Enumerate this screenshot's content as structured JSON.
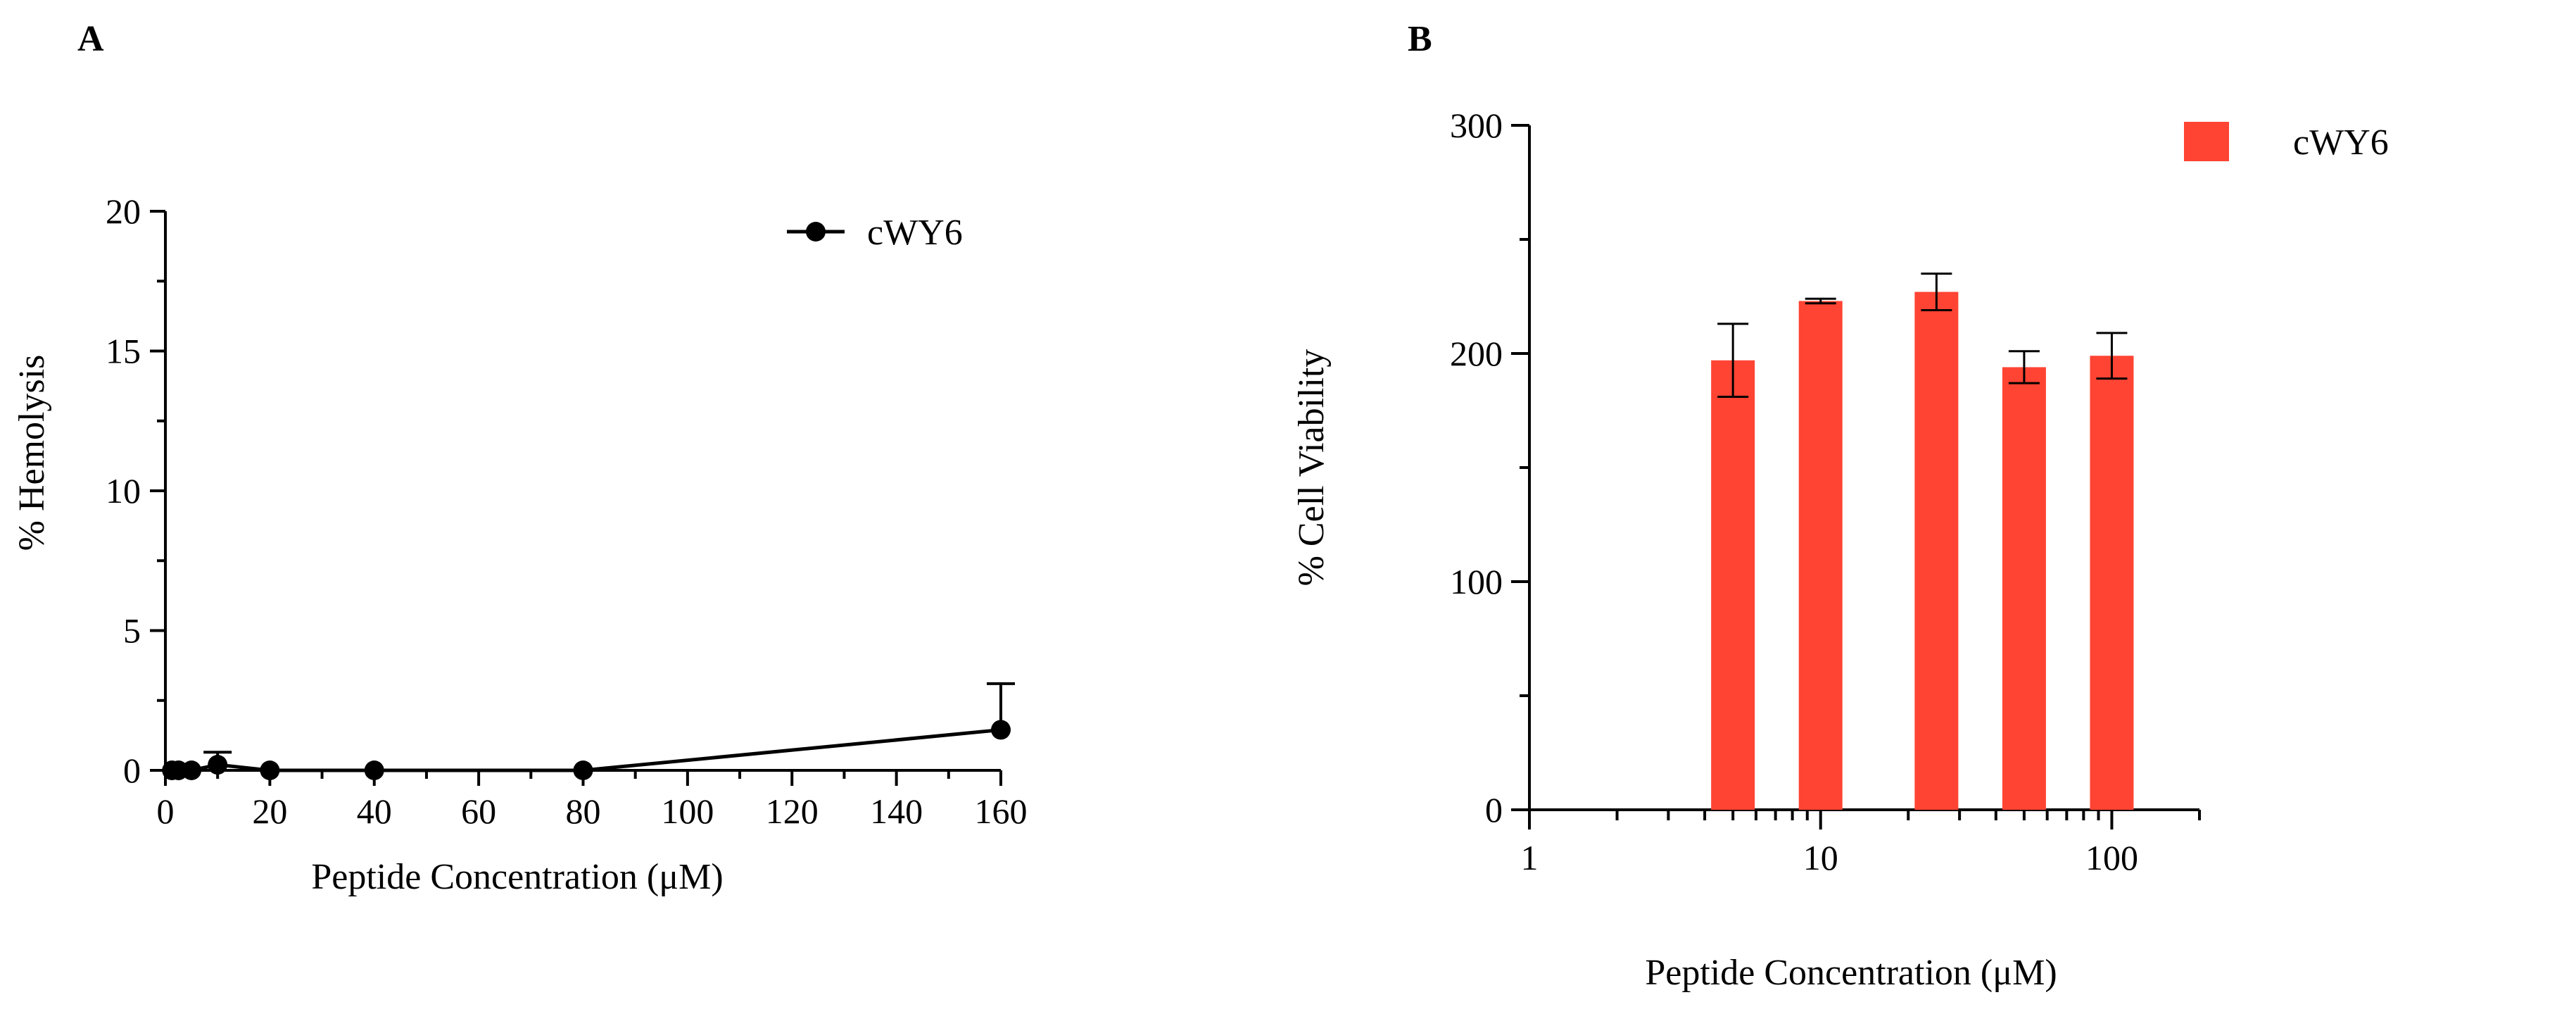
{
  "chart_data": [
    {
      "panel": "A",
      "type": "line",
      "title": "",
      "xlabel": "Peptide Concentration (μM)",
      "ylabel": "% Hemolysis",
      "xlim": [
        0,
        160
      ],
      "ylim": [
        0,
        20
      ],
      "xticks": [
        0,
        20,
        40,
        60,
        80,
        100,
        120,
        140,
        160
      ],
      "yticks": [
        0,
        5,
        10,
        15,
        20
      ],
      "legend": "top-right",
      "series": [
        {
          "name": "cWY6",
          "color": "#000000",
          "marker": "circle",
          "x": [
            1.25,
            2.5,
            5,
            10,
            20,
            40,
            80,
            160
          ],
          "y": [
            0.0,
            0.0,
            0.0,
            0.2,
            0.0,
            0.0,
            0.0,
            1.45
          ],
          "error": [
            0,
            0,
            0,
            0.45,
            0,
            0,
            0,
            1.65
          ]
        }
      ]
    },
    {
      "panel": "B",
      "type": "bar",
      "title": "",
      "xlabel": "Peptide Concentration (μM)",
      "ylabel": "% Cell Viability",
      "xscale": "log",
      "xlim": [
        1,
        200
      ],
      "ylim": [
        0,
        300
      ],
      "xticks": [
        1,
        10,
        100
      ],
      "yticks": [
        0,
        100,
        200,
        300
      ],
      "legend": "top-right",
      "series": [
        {
          "name": "cWY6",
          "color": "#ff4433",
          "x": [
            5,
            10,
            25,
            50,
            100
          ],
          "values": [
            197,
            223,
            227,
            194,
            199
          ],
          "error": [
            16,
            1,
            8,
            7,
            10
          ]
        }
      ]
    }
  ]
}
